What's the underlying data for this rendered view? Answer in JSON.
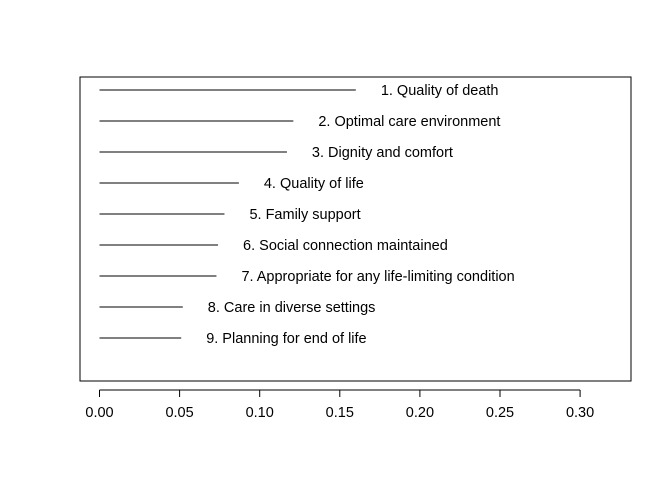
{
  "chart_data": {
    "type": "bar",
    "orientation": "horizontal",
    "title": "",
    "xlabel": "",
    "ylabel": "",
    "xlim": [
      0,
      0.33
    ],
    "x_ticks": [
      0.0,
      0.05,
      0.1,
      0.15,
      0.2,
      0.25,
      0.3
    ],
    "x_tick_labels": [
      "0.00",
      "0.05",
      "0.10",
      "0.15",
      "0.20",
      "0.25",
      "0.30"
    ],
    "grid": false,
    "legend": "none",
    "colors": {
      "line": "#000000",
      "text": "#000000",
      "frame": "#000000"
    },
    "categories": [
      "1. Quality of death",
      "2. Optimal care environment",
      "3. Dignity and comfort",
      "4. Quality of life",
      "5. Family support",
      "6. Social connection maintained",
      "7. Appropriate for any life-limiting condition",
      "8. Care in diverse settings",
      "9. Planning for end of life"
    ],
    "values": [
      0.16,
      0.121,
      0.117,
      0.087,
      0.078,
      0.074,
      0.073,
      0.052,
      0.051
    ]
  }
}
